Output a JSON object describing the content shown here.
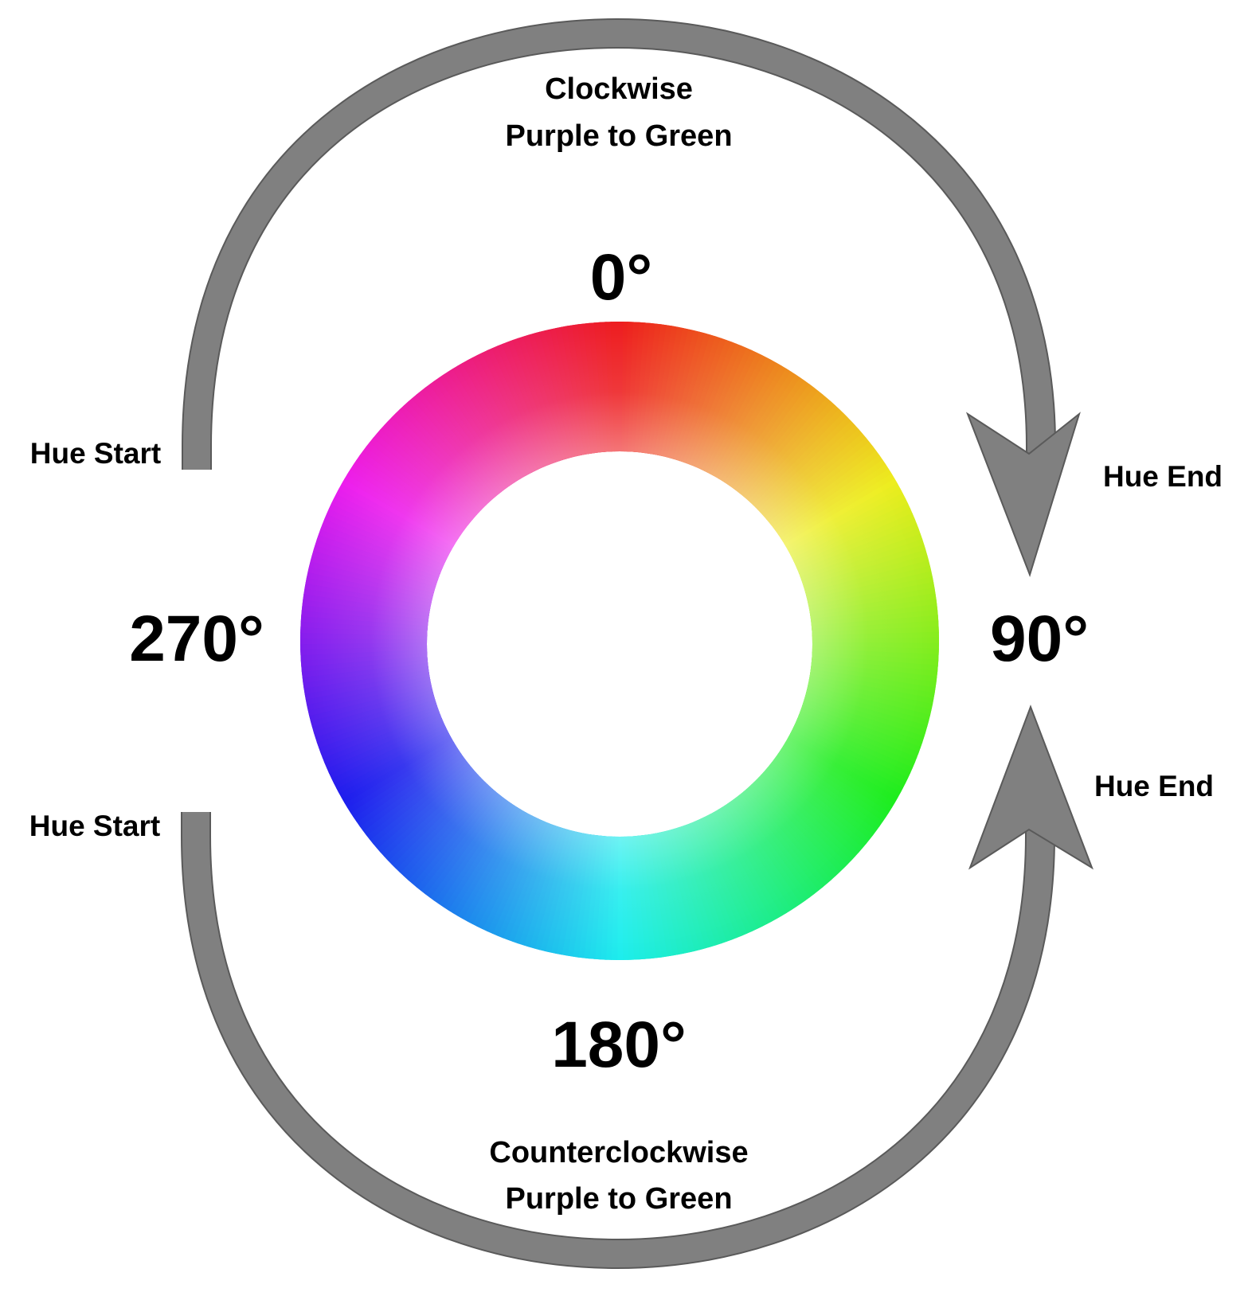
{
  "degrees": {
    "top": "0°",
    "right": "90°",
    "bottom": "180°",
    "left": "270°"
  },
  "clockwise": {
    "line1": "Clockwise",
    "line2": "Purple to Green",
    "start_label": "Hue Start",
    "end_label": "Hue End"
  },
  "counterclockwise": {
    "line1": "Counterclockwise",
    "line2": "Purple to Green",
    "start_label": "Hue Start",
    "end_label": "Hue End"
  },
  "colors": {
    "arrow": "#808080",
    "arrow_outline": "#5a5a5a",
    "text": "#000000",
    "background": "#ffffff"
  }
}
